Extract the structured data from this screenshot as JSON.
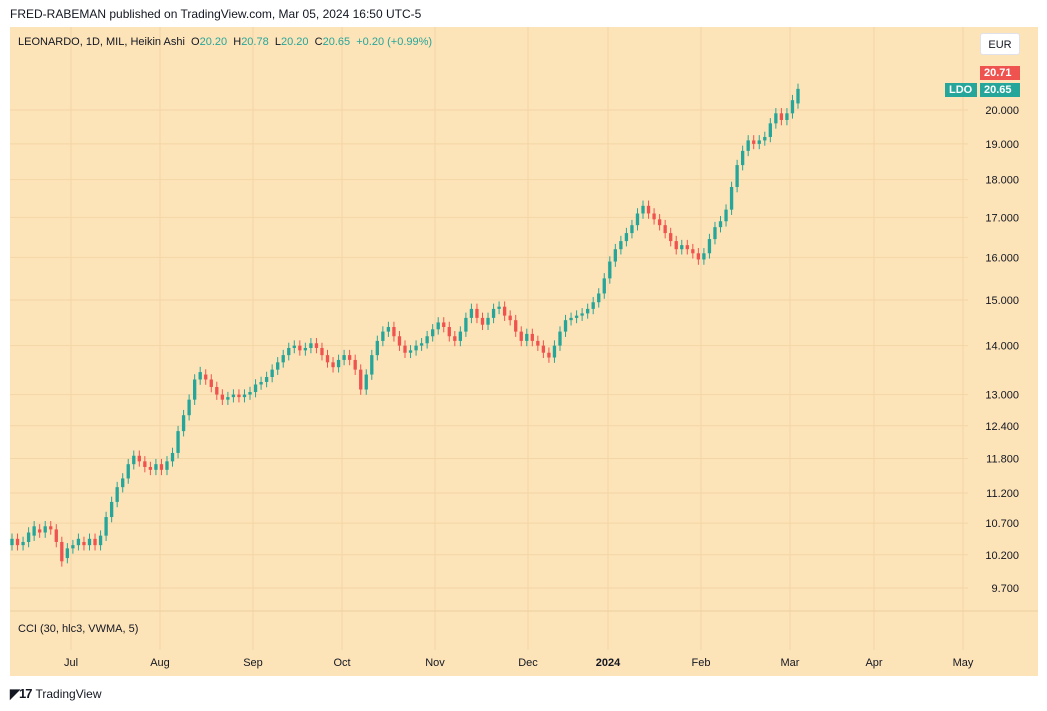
{
  "publisher": "FRED-RABEMAN published on TradingView.com, Mar 05, 2024 16:50 UTC-5",
  "legend": {
    "symbol": "LEONARDO, 1D, MIL, Heikin Ashi",
    "o_label": "O",
    "o_value": "20.20",
    "h_label": "H",
    "h_value": "20.78",
    "l_label": "L",
    "l_value": "20.20",
    "c_label": "C",
    "c_value": "20.65",
    "change": "+0.20 (+0.99%)"
  },
  "currency": "EUR",
  "indicator_label": "CCI (30, hlc3, VWMA, 5)",
  "price_tags": {
    "high": "20.71",
    "symbol": "LDO",
    "last": "20.65"
  },
  "footer": {
    "brand": "TradingView",
    "logo_icon": "tradingview-logo-icon"
  },
  "colors": {
    "background": "#fde3b8",
    "up": "#26a69a",
    "down": "#ef5350",
    "grid": "#f3d6a6"
  },
  "chart_data": {
    "type": "candlestick",
    "subtype": "heikin-ashi",
    "symbol": "LDO",
    "y_scale": "log",
    "ylim": [
      9.5,
      21.2
    ],
    "y_ticks": [
      "20.000",
      "19.000",
      "18.000",
      "17.000",
      "16.000",
      "15.000",
      "14.000",
      "13.000",
      "12.400",
      "11.800",
      "11.200",
      "10.700",
      "10.200",
      "9.700"
    ],
    "x_ticks": [
      "Jul",
      "Aug",
      "Sep",
      "Oct",
      "Nov",
      "Dec",
      "2024",
      "Feb",
      "Mar",
      "Apr",
      "May"
    ],
    "grid": true,
    "candles": [
      {
        "o": 10.35,
        "c": 10.45
      },
      {
        "o": 10.45,
        "c": 10.35
      },
      {
        "o": 10.35,
        "c": 10.4
      },
      {
        "o": 10.4,
        "c": 10.55
      },
      {
        "o": 10.5,
        "c": 10.65
      },
      {
        "o": 10.6,
        "c": 10.55
      },
      {
        "o": 10.55,
        "c": 10.65
      },
      {
        "o": 10.65,
        "c": 10.6
      },
      {
        "o": 10.6,
        "c": 10.4
      },
      {
        "o": 10.4,
        "c": 10.1
      },
      {
        "o": 10.15,
        "c": 10.3
      },
      {
        "o": 10.3,
        "c": 10.35
      },
      {
        "o": 10.35,
        "c": 10.45
      },
      {
        "o": 10.4,
        "c": 10.35
      },
      {
        "o": 10.35,
        "c": 10.45
      },
      {
        "o": 10.45,
        "c": 10.35
      },
      {
        "o": 10.35,
        "c": 10.5
      },
      {
        "o": 10.5,
        "c": 10.8
      },
      {
        "o": 10.8,
        "c": 11.05
      },
      {
        "o": 11.05,
        "c": 11.3
      },
      {
        "o": 11.3,
        "c": 11.45
      },
      {
        "o": 11.45,
        "c": 11.7
      },
      {
        "o": 11.7,
        "c": 11.85
      },
      {
        "o": 11.85,
        "c": 11.75
      },
      {
        "o": 11.75,
        "c": 11.65
      },
      {
        "o": 11.65,
        "c": 11.6
      },
      {
        "o": 11.6,
        "c": 11.7
      },
      {
        "o": 11.7,
        "c": 11.6
      },
      {
        "o": 11.6,
        "c": 11.75
      },
      {
        "o": 11.75,
        "c": 11.9
      },
      {
        "o": 11.9,
        "c": 12.3
      },
      {
        "o": 12.3,
        "c": 12.6
      },
      {
        "o": 12.6,
        "c": 12.9
      },
      {
        "o": 12.9,
        "c": 13.3
      },
      {
        "o": 13.3,
        "c": 13.45
      },
      {
        "o": 13.4,
        "c": 13.3
      },
      {
        "o": 13.3,
        "c": 13.15
      },
      {
        "o": 13.15,
        "c": 13.0
      },
      {
        "o": 13.0,
        "c": 12.9
      },
      {
        "o": 12.9,
        "c": 12.95
      },
      {
        "o": 12.95,
        "c": 13.0
      },
      {
        "o": 13.0,
        "c": 12.95
      },
      {
        "o": 12.95,
        "c": 13.0
      },
      {
        "o": 13.0,
        "c": 13.05
      },
      {
        "o": 13.05,
        "c": 13.2
      },
      {
        "o": 13.2,
        "c": 13.25
      },
      {
        "o": 13.25,
        "c": 13.35
      },
      {
        "o": 13.35,
        "c": 13.5
      },
      {
        "o": 13.5,
        "c": 13.65
      },
      {
        "o": 13.65,
        "c": 13.8
      },
      {
        "o": 13.8,
        "c": 13.95
      },
      {
        "o": 13.95,
        "c": 14.0
      },
      {
        "o": 14.0,
        "c": 13.9
      },
      {
        "o": 13.9,
        "c": 13.95
      },
      {
        "o": 13.95,
        "c": 14.05
      },
      {
        "o": 14.05,
        "c": 13.95
      },
      {
        "o": 13.95,
        "c": 13.8
      },
      {
        "o": 13.8,
        "c": 13.65
      },
      {
        "o": 13.65,
        "c": 13.55
      },
      {
        "o": 13.55,
        "c": 13.7
      },
      {
        "o": 13.7,
        "c": 13.8
      },
      {
        "o": 13.8,
        "c": 13.7
      },
      {
        "o": 13.7,
        "c": 13.5
      },
      {
        "o": 13.5,
        "c": 13.1
      },
      {
        "o": 13.1,
        "c": 13.4
      },
      {
        "o": 13.4,
        "c": 13.8
      },
      {
        "o": 13.8,
        "c": 14.1
      },
      {
        "o": 14.1,
        "c": 14.3
      },
      {
        "o": 14.3,
        "c": 14.4
      },
      {
        "o": 14.4,
        "c": 14.2
      },
      {
        "o": 14.2,
        "c": 14.0
      },
      {
        "o": 14.0,
        "c": 13.85
      },
      {
        "o": 13.85,
        "c": 13.9
      },
      {
        "o": 13.9,
        "c": 14.0
      },
      {
        "o": 14.0,
        "c": 14.05
      },
      {
        "o": 14.05,
        "c": 14.2
      },
      {
        "o": 14.2,
        "c": 14.35
      },
      {
        "o": 14.35,
        "c": 14.5
      },
      {
        "o": 14.5,
        "c": 14.4
      },
      {
        "o": 14.4,
        "c": 14.2
      },
      {
        "o": 14.2,
        "c": 14.1
      },
      {
        "o": 14.1,
        "c": 14.3
      },
      {
        "o": 14.3,
        "c": 14.6
      },
      {
        "o": 14.6,
        "c": 14.8
      },
      {
        "o": 14.8,
        "c": 14.6
      },
      {
        "o": 14.6,
        "c": 14.45
      },
      {
        "o": 14.45,
        "c": 14.6
      },
      {
        "o": 14.6,
        "c": 14.8
      },
      {
        "o": 14.8,
        "c": 14.85
      },
      {
        "o": 14.85,
        "c": 14.65
      },
      {
        "o": 14.65,
        "c": 14.55
      },
      {
        "o": 14.55,
        "c": 14.3
      },
      {
        "o": 14.3,
        "c": 14.1
      },
      {
        "o": 14.1,
        "c": 14.25
      },
      {
        "o": 14.25,
        "c": 14.1
      },
      {
        "o": 14.1,
        "c": 14.0
      },
      {
        "o": 14.0,
        "c": 13.85
      },
      {
        "o": 13.85,
        "c": 13.75
      },
      {
        "o": 13.75,
        "c": 14.0
      },
      {
        "o": 14.0,
        "c": 14.3
      },
      {
        "o": 14.3,
        "c": 14.55
      },
      {
        "o": 14.55,
        "c": 14.6
      },
      {
        "o": 14.6,
        "c": 14.65
      },
      {
        "o": 14.65,
        "c": 14.7
      },
      {
        "o": 14.7,
        "c": 14.8
      },
      {
        "o": 14.8,
        "c": 14.95
      },
      {
        "o": 14.95,
        "c": 15.15
      },
      {
        "o": 15.15,
        "c": 15.5
      },
      {
        "o": 15.5,
        "c": 15.9
      },
      {
        "o": 15.9,
        "c": 16.2
      },
      {
        "o": 16.2,
        "c": 16.4
      },
      {
        "o": 16.4,
        "c": 16.6
      },
      {
        "o": 16.6,
        "c": 16.8
      },
      {
        "o": 16.8,
        "c": 17.1
      },
      {
        "o": 17.1,
        "c": 17.3
      },
      {
        "o": 17.3,
        "c": 17.1
      },
      {
        "o": 17.1,
        "c": 16.95
      },
      {
        "o": 16.95,
        "c": 16.8
      },
      {
        "o": 16.8,
        "c": 16.6
      },
      {
        "o": 16.6,
        "c": 16.4
      },
      {
        "o": 16.4,
        "c": 16.2
      },
      {
        "o": 16.2,
        "c": 16.3
      },
      {
        "o": 16.3,
        "c": 16.2
      },
      {
        "o": 16.2,
        "c": 16.1
      },
      {
        "o": 16.1,
        "c": 15.95
      },
      {
        "o": 15.95,
        "c": 16.1
      },
      {
        "o": 16.1,
        "c": 16.45
      },
      {
        "o": 16.45,
        "c": 16.75
      },
      {
        "o": 16.75,
        "c": 16.9
      },
      {
        "o": 16.9,
        "c": 17.2
      },
      {
        "o": 17.2,
        "c": 17.8
      },
      {
        "o": 17.8,
        "c": 18.4
      },
      {
        "o": 18.4,
        "c": 18.8
      },
      {
        "o": 18.8,
        "c": 19.1
      },
      {
        "o": 19.1,
        "c": 19.0
      },
      {
        "o": 19.0,
        "c": 19.1
      },
      {
        "o": 19.1,
        "c": 19.2
      },
      {
        "o": 19.2,
        "c": 19.6
      },
      {
        "o": 19.6,
        "c": 19.9
      },
      {
        "o": 19.9,
        "c": 19.7
      },
      {
        "o": 19.7,
        "c": 19.9
      },
      {
        "o": 19.9,
        "c": 20.3
      },
      {
        "o": 20.2,
        "c": 20.65
      }
    ]
  }
}
